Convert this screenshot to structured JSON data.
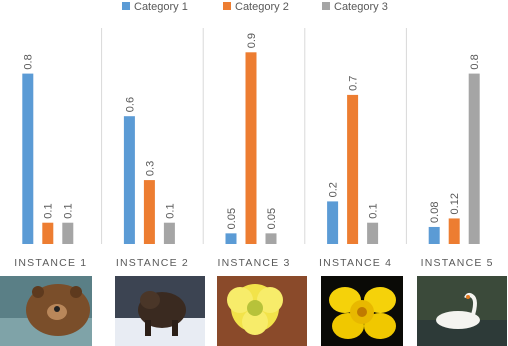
{
  "chart_data": {
    "type": "bar",
    "categories": [
      "INSTANCE 1",
      "INSTANCE 2",
      "INSTANCE 3",
      "INSTANCE 4",
      "INSTANCE 5"
    ],
    "series": [
      {
        "name": "Category 1",
        "color": "#5b9bd5",
        "values": [
          0.8,
          0.6,
          0.05,
          0.2,
          0.08
        ]
      },
      {
        "name": "Category 2",
        "color": "#ed7d31",
        "values": [
          0.1,
          0.3,
          0.9,
          0.7,
          0.12
        ]
      },
      {
        "name": "Category 3",
        "color": "#a5a5a5",
        "values": [
          0.1,
          0.1,
          0.05,
          0.1,
          0.8
        ]
      }
    ],
    "ylim": [
      0,
      1
    ],
    "legend": "top"
  }
}
